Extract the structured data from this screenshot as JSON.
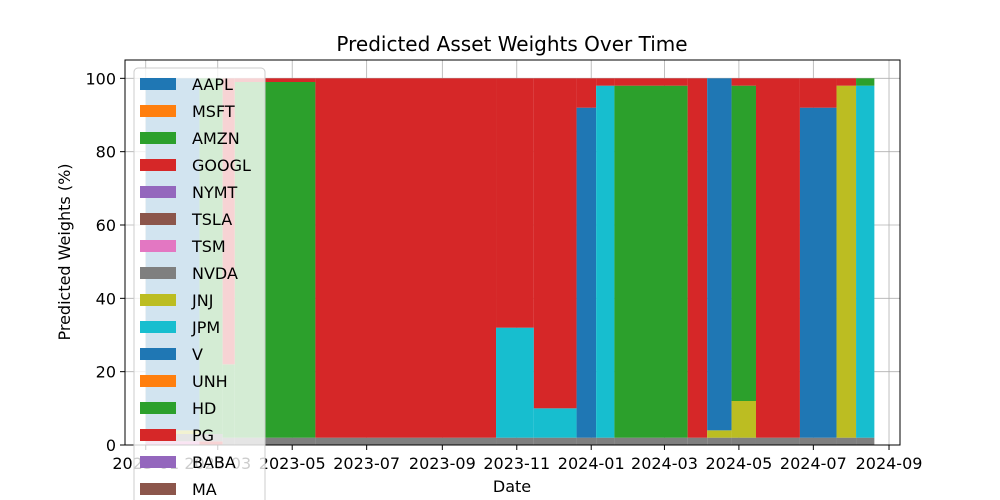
{
  "chart_data": {
    "type": "area",
    "stacked": true,
    "title": "Predicted Asset Weights Over Time",
    "xlabel": "Date",
    "ylabel": "Predicted Weights (%)",
    "xlim": [
      "2022-12-15",
      "2024-09-10"
    ],
    "ylim": [
      0,
      105
    ],
    "x_ticks": [
      "2023-01",
      "2023-03",
      "2023-05",
      "2023-07",
      "2023-09",
      "2023-11",
      "2024-01",
      "2024-03",
      "2024-05",
      "2024-07",
      "2024-09"
    ],
    "x_tick_labels": [
      "2023-01",
      "2023-03",
      "2023-05",
      "2023-07",
      "2023-09",
      "2023-11",
      "2024-01",
      "2024-03",
      "2024-05",
      "2024-07",
      "2024-09"
    ],
    "y_ticks": [
      0,
      20,
      40,
      60,
      80,
      100
    ],
    "grid": true,
    "legend_placement": "left, overflowing below plot",
    "colors": {
      "AAPL": "#1f77b4",
      "MSFT": "#ff7f0e",
      "AMZN": "#2ca02c",
      "GOOGL": "#d62728",
      "NYMT": "#9467bd",
      "TSLA": "#8c564b",
      "TSM": "#e377c2",
      "NVDA": "#7f7f7f",
      "JNJ": "#bcbd22",
      "JPM": "#17becf",
      "V": "#1f77b4",
      "UNH": "#ff7f0e",
      "HD": "#2ca02c",
      "PG": "#d62728",
      "BABA": "#9467bd",
      "MA": "#8c564b"
    },
    "legend": [
      "AAPL",
      "MSFT",
      "AMZN",
      "GOOGL",
      "NYMT",
      "TSLA",
      "TSM",
      "NVDA",
      "JNJ",
      "JPM",
      "V",
      "UNH",
      "HD",
      "PG",
      "BABA",
      "MA"
    ],
    "periods": [
      {
        "start": "2023-01-01",
        "end": "2023-02-14",
        "weights": {
          "NVDA": 2,
          "V": 96,
          "JNJ": 1,
          "TSM": 1
        }
      },
      {
        "start": "2023-02-14",
        "end": "2023-03-05",
        "weights": {
          "NVDA": 2,
          "HD": 97,
          "GOOGL": 1
        }
      },
      {
        "start": "2023-03-05",
        "end": "2023-03-15",
        "weights": {
          "NVDA": 2,
          "HD": 20,
          "PG": 78
        }
      },
      {
        "start": "2023-03-15",
        "end": "2023-05-20",
        "weights": {
          "NVDA": 2,
          "HD": 97,
          "PG": 1
        }
      },
      {
        "start": "2023-05-20",
        "end": "2023-10-15",
        "weights": {
          "NVDA": 2,
          "PG": 98
        }
      },
      {
        "start": "2023-10-15",
        "end": "2023-11-15",
        "weights": {
          "NVDA": 2,
          "JPM": 30,
          "PG": 68
        }
      },
      {
        "start": "2023-11-15",
        "end": "2023-12-20",
        "weights": {
          "NVDA": 2,
          "JPM": 8,
          "PG": 90
        }
      },
      {
        "start": "2023-12-20",
        "end": "2024-01-05",
        "weights": {
          "NVDA": 2,
          "V": 90,
          "PG": 8
        }
      },
      {
        "start": "2024-01-05",
        "end": "2024-01-20",
        "weights": {
          "NVDA": 2,
          "JPM": 96,
          "PG": 2
        }
      },
      {
        "start": "2024-01-20",
        "end": "2024-03-20",
        "weights": {
          "NVDA": 2,
          "HD": 96,
          "PG": 2
        }
      },
      {
        "start": "2024-03-20",
        "end": "2024-04-05",
        "weights": {
          "NVDA": 2,
          "PG": 98
        }
      },
      {
        "start": "2024-04-05",
        "end": "2024-04-25",
        "weights": {
          "NVDA": 2,
          "V": 96,
          "JNJ": 2
        }
      },
      {
        "start": "2024-04-25",
        "end": "2024-05-15",
        "weights": {
          "NVDA": 2,
          "JNJ": 10,
          "HD": 86,
          "PG": 2
        }
      },
      {
        "start": "2024-05-15",
        "end": "2024-06-20",
        "weights": {
          "NVDA": 2,
          "PG": 98
        }
      },
      {
        "start": "2024-06-20",
        "end": "2024-07-20",
        "weights": {
          "NVDA": 2,
          "V": 90,
          "PG": 8
        }
      },
      {
        "start": "2024-07-20",
        "end": "2024-08-05",
        "weights": {
          "NVDA": 2,
          "JNJ": 96,
          "PG": 2
        }
      },
      {
        "start": "2024-08-05",
        "end": "2024-08-20",
        "weights": {
          "NVDA": 2,
          "JPM": 96,
          "HD": 2
        }
      }
    ]
  }
}
